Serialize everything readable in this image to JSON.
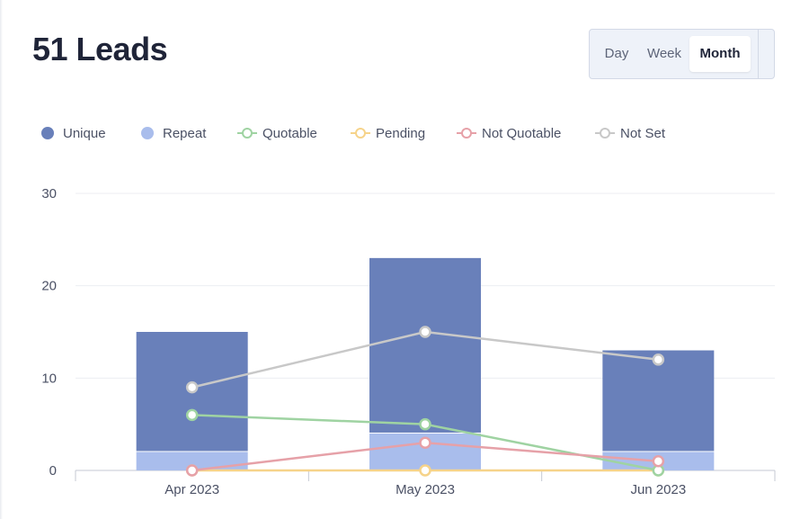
{
  "header": {
    "title": "51 Leads"
  },
  "range_toggle": {
    "options": [
      "Day",
      "Week",
      "Month"
    ],
    "selected": "Month"
  },
  "chart_data": {
    "type": "bar",
    "categories": [
      "Apr 2023",
      "May 2023",
      "Jun 2023"
    ],
    "ylim": [
      0,
      30
    ],
    "yticks": [
      0,
      10,
      20,
      30
    ],
    "grid": true,
    "legend_position": "top",
    "bar_series": [
      {
        "name": "Unique",
        "values": [
          13,
          19,
          11
        ],
        "color": "#6980ba",
        "stack": "leads"
      },
      {
        "name": "Repeat",
        "values": [
          2,
          4,
          2
        ],
        "color": "#a9bdec",
        "stack": "leads"
      }
    ],
    "line_series": [
      {
        "name": "Quotable",
        "values": [
          6,
          5,
          0
        ],
        "color": "#9fd3a2"
      },
      {
        "name": "Pending",
        "values": [
          0,
          0,
          0
        ],
        "color": "#f6d38a"
      },
      {
        "name": "Not Quotable",
        "values": [
          0,
          3,
          1
        ],
        "color": "#e6a1a8"
      },
      {
        "name": "Not Set",
        "values": [
          9,
          15,
          12
        ],
        "color": "#c8c8c8"
      }
    ]
  }
}
